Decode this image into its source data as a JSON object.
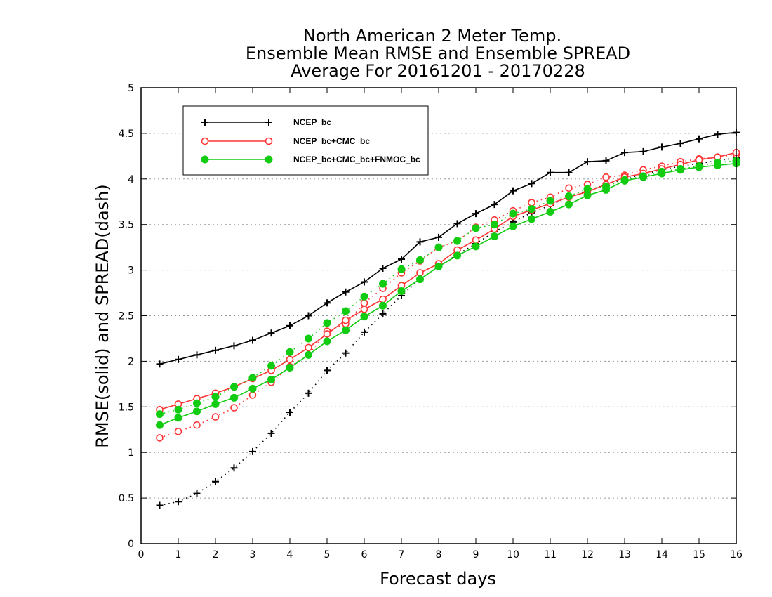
{
  "chart_data": {
    "type": "line",
    "title_lines": [
      "North American 2 Meter Temp.",
      "Ensemble Mean RMSE and Ensemble SPREAD",
      "Average For 20161201 - 20170228"
    ],
    "xlabel": "Forecast days",
    "ylabel": "RMSE(solid) and SPREAD(dash)",
    "xlim": [
      0,
      16
    ],
    "ylim": [
      0,
      5
    ],
    "xticks": [
      0,
      1,
      2,
      3,
      4,
      5,
      6,
      7,
      8,
      9,
      10,
      11,
      12,
      13,
      14,
      15,
      16
    ],
    "yticks": [
      0,
      0.5,
      1,
      1.5,
      2,
      2.5,
      3,
      3.5,
      4,
      4.5,
      5
    ],
    "grid": "horizontal dotted",
    "legend_position": "top-left",
    "x": [
      0.5,
      1,
      1.5,
      2,
      2.5,
      3,
      3.5,
      4,
      4.5,
      5,
      5.5,
      6,
      6.5,
      7,
      7.5,
      8,
      8.5,
      9,
      9.5,
      10,
      10.5,
      11,
      11.5,
      12,
      12.5,
      13,
      13.5,
      14,
      14.5,
      15,
      15.5,
      16
    ],
    "series": [
      {
        "name": "NCEP_bc",
        "color": "#000000",
        "marker": "plus",
        "rmse": [
          1.97,
          2.02,
          2.07,
          2.12,
          2.17,
          2.23,
          2.31,
          2.39,
          2.5,
          2.64,
          2.76,
          2.87,
          3.02,
          3.12,
          3.31,
          3.36,
          3.51,
          3.62,
          3.72,
          3.87,
          3.95,
          4.07,
          4.07,
          4.19,
          4.2,
          4.29,
          4.3,
          4.35,
          4.39,
          4.44,
          4.49,
          4.51
        ],
        "spread": [
          0.42,
          0.46,
          0.55,
          0.68,
          0.83,
          1.01,
          1.21,
          1.44,
          1.65,
          1.9,
          2.09,
          2.32,
          2.52,
          2.72,
          2.9,
          3.04,
          3.17,
          3.29,
          3.42,
          3.53,
          3.63,
          3.71,
          3.8,
          3.87,
          3.94,
          4.0,
          4.05,
          4.1,
          4.14,
          4.17,
          4.2,
          4.23
        ]
      },
      {
        "name": "NCEP_bc+CMC_bc",
        "color": "#ff3333",
        "marker": "open-circle",
        "rmse": [
          1.47,
          1.53,
          1.59,
          1.65,
          1.72,
          1.81,
          1.9,
          2.02,
          2.15,
          2.3,
          2.45,
          2.57,
          2.68,
          2.83,
          2.97,
          3.07,
          3.22,
          3.33,
          3.45,
          3.59,
          3.66,
          3.73,
          3.8,
          3.86,
          3.94,
          4.02,
          4.06,
          4.11,
          4.16,
          4.21,
          4.24,
          4.29
        ],
        "spread": [
          1.16,
          1.23,
          1.3,
          1.39,
          1.49,
          1.63,
          1.77,
          1.94,
          2.07,
          2.33,
          2.41,
          2.64,
          2.8,
          2.97,
          3.1,
          3.25,
          3.32,
          3.47,
          3.55,
          3.65,
          3.74,
          3.8,
          3.9,
          3.94,
          4.02,
          4.04,
          4.1,
          4.14,
          4.19,
          4.22,
          4.24,
          4.27
        ]
      },
      {
        "name": "NCEP_bc+CMC_bc+FNMOC_bc",
        "color": "#11cc11",
        "marker": "filled-circle",
        "rmse": [
          1.3,
          1.38,
          1.45,
          1.53,
          1.6,
          1.7,
          1.8,
          1.93,
          2.07,
          2.22,
          2.34,
          2.49,
          2.61,
          2.77,
          2.9,
          3.04,
          3.16,
          3.26,
          3.37,
          3.48,
          3.56,
          3.64,
          3.72,
          3.82,
          3.88,
          3.98,
          4.02,
          4.06,
          4.1,
          4.13,
          4.15,
          4.17
        ],
        "spread": [
          1.42,
          1.47,
          1.54,
          1.61,
          1.72,
          1.82,
          1.95,
          2.1,
          2.25,
          2.42,
          2.55,
          2.71,
          2.85,
          3.01,
          3.11,
          3.25,
          3.32,
          3.46,
          3.5,
          3.62,
          3.67,
          3.76,
          3.81,
          3.89,
          3.92,
          3.99,
          4.03,
          4.08,
          4.11,
          4.14,
          4.18,
          4.2
        ]
      }
    ]
  }
}
